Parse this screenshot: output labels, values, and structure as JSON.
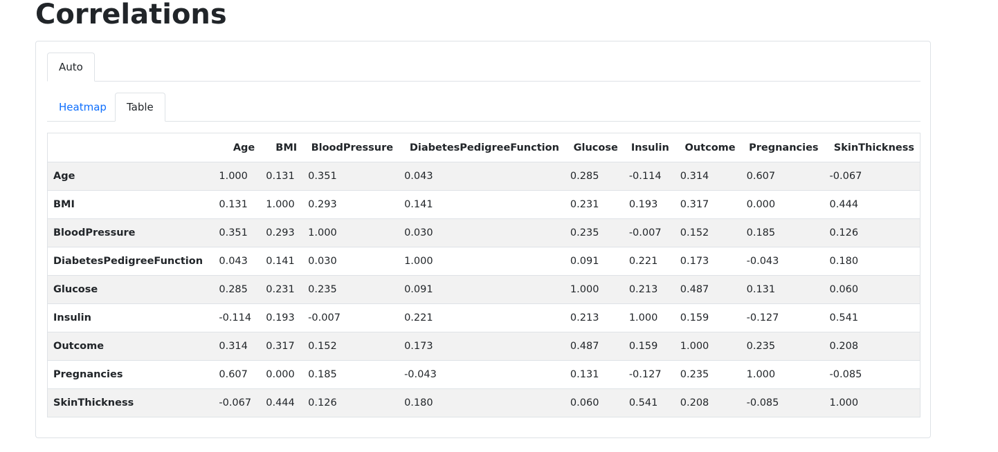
{
  "page": {
    "title": "Correlations"
  },
  "tabs": {
    "outer": [
      {
        "label": "Auto",
        "active": true
      }
    ],
    "inner": [
      {
        "label": "Heatmap",
        "active": false
      },
      {
        "label": "Table",
        "active": true
      }
    ]
  },
  "table": {
    "columns": [
      "Age",
      "BMI",
      "BloodPressure",
      "DiabetesPedigreeFunction",
      "Glucose",
      "Insulin",
      "Outcome",
      "Pregnancies",
      "SkinThickness"
    ],
    "rows": [
      {
        "label": "Age",
        "values": [
          "1.000",
          "0.131",
          "0.351",
          "0.043",
          "0.285",
          "-0.114",
          "0.314",
          "0.607",
          "-0.067"
        ]
      },
      {
        "label": "BMI",
        "values": [
          "0.131",
          "1.000",
          "0.293",
          "0.141",
          "0.231",
          "0.193",
          "0.317",
          "0.000",
          "0.444"
        ]
      },
      {
        "label": "BloodPressure",
        "values": [
          "0.351",
          "0.293",
          "1.000",
          "0.030",
          "0.235",
          "-0.007",
          "0.152",
          "0.185",
          "0.126"
        ]
      },
      {
        "label": "DiabetesPedigreeFunction",
        "values": [
          "0.043",
          "0.141",
          "0.030",
          "1.000",
          "0.091",
          "0.221",
          "0.173",
          "-0.043",
          "0.180"
        ]
      },
      {
        "label": "Glucose",
        "values": [
          "0.285",
          "0.231",
          "0.235",
          "0.091",
          "1.000",
          "0.213",
          "0.487",
          "0.131",
          "0.060"
        ]
      },
      {
        "label": "Insulin",
        "values": [
          "-0.114",
          "0.193",
          "-0.007",
          "0.221",
          "0.213",
          "1.000",
          "0.159",
          "-0.127",
          "0.541"
        ]
      },
      {
        "label": "Outcome",
        "values": [
          "0.314",
          "0.317",
          "0.152",
          "0.173",
          "0.487",
          "0.159",
          "1.000",
          "0.235",
          "0.208"
        ]
      },
      {
        "label": "Pregnancies",
        "values": [
          "0.607",
          "0.000",
          "0.185",
          "-0.043",
          "0.131",
          "-0.127",
          "0.235",
          "1.000",
          "-0.085"
        ]
      },
      {
        "label": "SkinThickness",
        "values": [
          "-0.067",
          "0.444",
          "0.126",
          "0.180",
          "0.060",
          "0.541",
          "0.208",
          "-0.085",
          "1.000"
        ]
      }
    ]
  },
  "colors": {
    "link": "#0d6efd",
    "border": "#dee2e6",
    "stripe": "#f2f2f2",
    "text": "#212529"
  }
}
